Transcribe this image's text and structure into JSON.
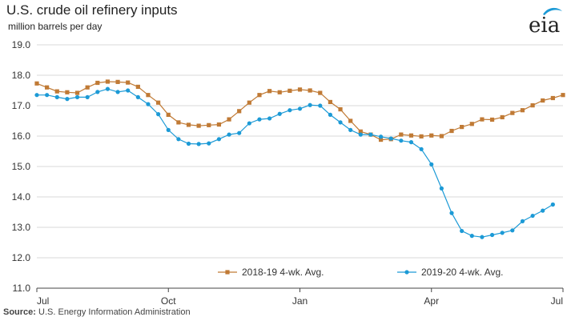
{
  "header": {
    "title": "U.S. crude oil refinery  inputs",
    "subtitle": "million barrels per day",
    "logo_text": "eia"
  },
  "footer": {
    "source_label": "Source:",
    "source_text": "U.S. Energy Information Administration"
  },
  "colors": {
    "series_2018": "#c07a35",
    "series_2019": "#1c9ad6",
    "grid": "#d9d9d9",
    "axis": "#444444",
    "logo_swoosh": "#1c9ad6"
  },
  "chart_data": {
    "type": "line",
    "title": "U.S. crude oil refinery  inputs",
    "ylabel": "million barrels per day",
    "ylim": [
      11.0,
      19.0
    ],
    "xlim": [
      0,
      52
    ],
    "grid": "horizontal",
    "legend_position": "bottom",
    "y_ticks": [
      "11.0",
      "12.0",
      "13.0",
      "14.0",
      "15.0",
      "16.0",
      "17.0",
      "18.0",
      "19.0"
    ],
    "y_tick_values": [
      11,
      12,
      13,
      14,
      15,
      16,
      17,
      18,
      19
    ],
    "x_ticks": [
      {
        "label": "Jul",
        "week": 0
      },
      {
        "label": "Oct",
        "week": 13
      },
      {
        "label": "Jan",
        "week": 26
      },
      {
        "label": "Apr",
        "week": 39
      },
      {
        "label": "Jul",
        "week": 52
      }
    ],
    "series": [
      {
        "name": "2018-19  4-wk. Avg.",
        "marker": "square",
        "color": "#c07a35",
        "values": [
          17.73,
          17.6,
          17.47,
          17.44,
          17.42,
          17.6,
          17.75,
          17.79,
          17.78,
          17.76,
          17.62,
          17.35,
          17.1,
          16.7,
          16.45,
          16.37,
          16.34,
          16.36,
          16.38,
          16.55,
          16.82,
          17.1,
          17.35,
          17.48,
          17.44,
          17.49,
          17.53,
          17.5,
          17.42,
          17.12,
          16.88,
          16.5,
          16.15,
          16.05,
          15.88,
          15.9,
          16.05,
          16.02,
          15.99,
          16.02,
          16.0,
          16.17,
          16.3,
          16.4,
          16.55,
          16.54,
          16.62,
          16.76,
          16.85,
          17.01,
          17.17,
          17.25,
          17.35
        ]
      },
      {
        "name": "2019-20  4-wk. Avg.",
        "marker": "circle",
        "color": "#1c9ad6",
        "values": [
          17.35,
          17.35,
          17.28,
          17.22,
          17.28,
          17.28,
          17.45,
          17.55,
          17.45,
          17.5,
          17.28,
          17.05,
          16.72,
          16.2,
          15.9,
          15.75,
          15.74,
          15.76,
          15.9,
          16.05,
          16.1,
          16.42,
          16.55,
          16.58,
          16.73,
          16.85,
          16.9,
          17.02,
          17.0,
          16.7,
          16.45,
          16.2,
          16.05,
          16.05,
          15.98,
          15.92,
          15.85,
          15.8,
          15.57,
          15.07,
          14.28,
          13.47,
          12.88,
          12.72,
          12.68,
          12.75,
          12.82,
          12.9,
          13.2,
          13.38,
          13.55,
          13.75
        ]
      }
    ]
  }
}
